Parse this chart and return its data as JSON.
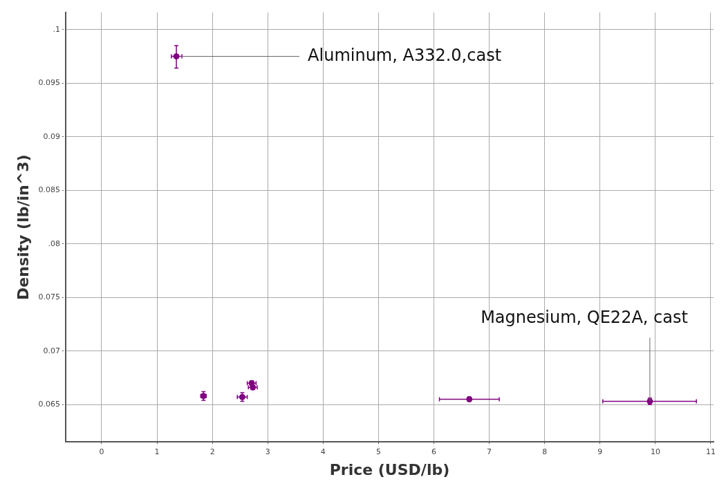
{
  "chart_data": {
    "type": "scatter",
    "xlabel": "Price (USD/lb)",
    "ylabel": "Density (lb/in^3)",
    "xlim": [
      -0.65,
      11.05
    ],
    "ylim": [
      0.0615,
      0.1016
    ],
    "xticks": [
      0,
      1,
      2,
      3,
      4,
      5,
      6,
      7,
      8,
      9,
      10,
      11
    ],
    "yticks": [
      {
        "value": 0.065,
        "label": "0.065"
      },
      {
        "value": 0.07,
        "label": "0.07"
      },
      {
        "value": 0.075,
        "label": "0.075"
      },
      {
        "value": 0.08,
        "label": ".08"
      },
      {
        "value": 0.085,
        "label": "0.085"
      },
      {
        "value": 0.09,
        "label": "0.09"
      },
      {
        "value": 0.095,
        "label": "0.095"
      },
      {
        "value": 0.1,
        "label": ".1"
      }
    ],
    "grid": true,
    "series": [
      {
        "color": "#800080",
        "x": [
          1.35,
          1.84,
          2.54,
          2.71,
          2.73,
          6.64,
          9.9
        ],
        "values": [
          0.0975,
          0.0658,
          0.0657,
          0.067,
          0.0666,
          0.0655,
          0.0653
        ],
        "xerrors": [
          [
            1.26,
            1.45
          ],
          [
            1.79,
            1.89
          ],
          [
            2.45,
            2.63
          ],
          [
            2.63,
            2.79
          ],
          [
            2.65,
            2.81
          ],
          [
            6.1,
            7.18
          ],
          [
            9.05,
            10.74
          ]
        ],
        "errors": [
          [
            0.0964,
            0.0985
          ],
          [
            0.0654,
            0.0662
          ],
          [
            0.0653,
            0.0661
          ],
          [
            0.0668,
            0.0672
          ],
          [
            0.0664,
            0.0668
          ],
          [
            0.0653,
            0.0657
          ],
          [
            0.065,
            0.0656
          ]
        ]
      }
    ],
    "annotations": [
      {
        "text": "Aluminum, A332.0,cast",
        "x": 1.35,
        "y": 0.0975
      },
      {
        "text": "Magnesium, QE22A, cast",
        "x": 9.9,
        "y": 0.0653
      }
    ]
  }
}
